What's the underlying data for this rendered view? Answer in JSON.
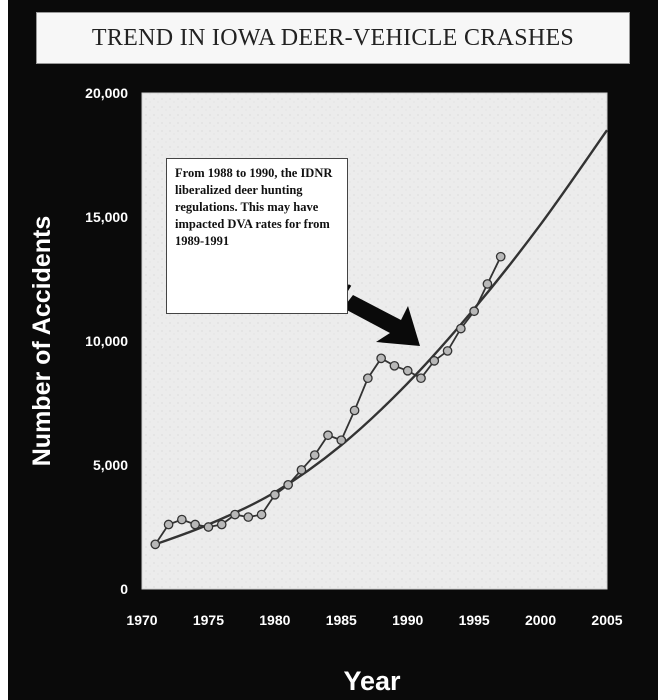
{
  "chart_data": {
    "type": "line",
    "title": "TREND IN IOWA DEER-VEHICLE CRASHES",
    "xlabel": "Year",
    "ylabel": "Number of Accidents",
    "xlim": [
      1970,
      2005
    ],
    "ylim": [
      0,
      20000
    ],
    "x_ticks": [
      "1970",
      "1975",
      "1980",
      "1985",
      "1990",
      "1995",
      "2000",
      "2005"
    ],
    "y_ticks": [
      "0",
      "5,000",
      "10,000",
      "15,000",
      "20,000"
    ],
    "x_tick_values": [
      1970,
      1975,
      1980,
      1985,
      1990,
      1995,
      2000,
      2005
    ],
    "y_tick_values": [
      0,
      5000,
      10000,
      15000,
      20000
    ],
    "grid": false,
    "legend": "none",
    "series": [
      {
        "kind": "observed",
        "x": [
          1971,
          1972,
          1973,
          1974,
          1975,
          1976,
          1977,
          1978,
          1979,
          1980,
          1981,
          1982,
          1983,
          1984,
          1985,
          1986,
          1987,
          1988,
          1989,
          1990,
          1991,
          1992,
          1993,
          1994,
          1995,
          1996,
          1997
        ],
        "y": [
          1800,
          2600,
          2800,
          2600,
          2500,
          2600,
          3000,
          2900,
          3000,
          3800,
          4200,
          4800,
          5400,
          6200,
          6000,
          7200,
          8500,
          9300,
          9000,
          8800,
          8500,
          9200,
          9600,
          10500,
          11200,
          12300,
          13400
        ]
      },
      {
        "kind": "trend",
        "x": [
          1971,
          1975,
          1980,
          1985,
          1990,
          1995,
          2000,
          2005
        ],
        "y": [
          1800,
          2600,
          3900,
          5800,
          8300,
          11300,
          14700,
          18500
        ]
      }
    ],
    "annotation": "From 1988 to 1990, the IDNR liberalized deer hunting regulations. This may have impacted DVA rates for from 1989-1991",
    "colors": {
      "background": "#0a0a0a",
      "plot_area": "#ececec",
      "line": "#333333",
      "marker_fill": "#b8b8b8",
      "text": "#ffffff"
    }
  }
}
